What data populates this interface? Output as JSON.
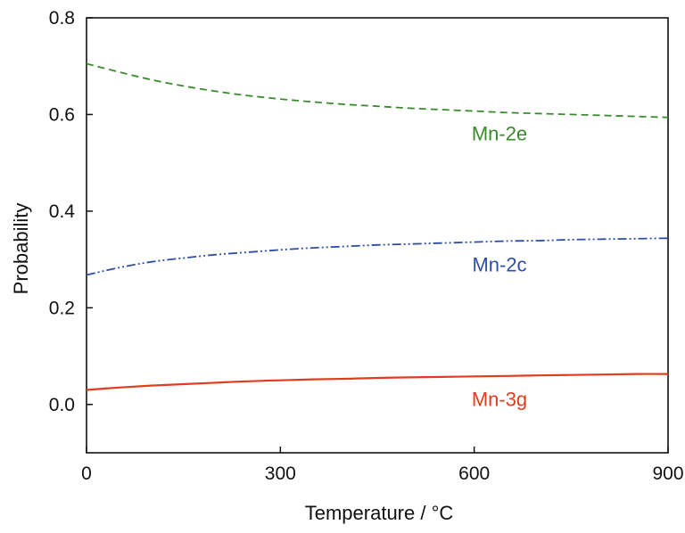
{
  "chart_data": {
    "type": "line",
    "title": "",
    "xlabel": "Temperature / °C",
    "ylabel": "Probability",
    "xlim": [
      0,
      900
    ],
    "ylim": [
      -0.1,
      0.8
    ],
    "x_ticks": [
      0,
      300,
      600,
      900
    ],
    "x_tick_labels": [
      "0",
      "300",
      "600",
      "900"
    ],
    "y_ticks": [
      0.0,
      0.2,
      0.4,
      0.6,
      0.8
    ],
    "y_tick_labels": [
      "0.0",
      "0.2",
      "0.4",
      "0.6",
      "0.8"
    ],
    "grid": false,
    "legend": "none",
    "series": [
      {
        "name": "Mn-2e",
        "color": "#3a8a2e",
        "line_style": "dashed",
        "x": [
          0,
          50,
          100,
          150,
          200,
          250,
          300,
          350,
          400,
          450,
          500,
          550,
          600,
          650,
          700,
          750,
          800,
          850,
          900
        ],
        "values": [
          0.705,
          0.688,
          0.672,
          0.659,
          0.648,
          0.639,
          0.632,
          0.626,
          0.621,
          0.617,
          0.613,
          0.61,
          0.607,
          0.604,
          0.602,
          0.6,
          0.598,
          0.596,
          0.594
        ]
      },
      {
        "name": "Mn-2c",
        "color": "#2e4ea8",
        "line_style": "dash-dot-dot",
        "x": [
          0,
          50,
          100,
          150,
          200,
          250,
          300,
          350,
          400,
          450,
          500,
          550,
          600,
          650,
          700,
          750,
          800,
          850,
          900
        ],
        "values": [
          0.268,
          0.283,
          0.295,
          0.303,
          0.31,
          0.315,
          0.32,
          0.324,
          0.327,
          0.33,
          0.332,
          0.334,
          0.336,
          0.338,
          0.339,
          0.341,
          0.342,
          0.343,
          0.344
        ]
      },
      {
        "name": "Mn-3g",
        "color": "#e03c1e",
        "line_style": "solid",
        "x": [
          0,
          50,
          100,
          150,
          200,
          250,
          300,
          350,
          400,
          450,
          500,
          550,
          600,
          650,
          700,
          750,
          800,
          850,
          900
        ],
        "values": [
          0.03,
          0.035,
          0.039,
          0.042,
          0.045,
          0.048,
          0.05,
          0.052,
          0.053,
          0.055,
          0.056,
          0.057,
          0.058,
          0.059,
          0.06,
          0.061,
          0.062,
          0.063,
          0.063
        ]
      }
    ]
  }
}
